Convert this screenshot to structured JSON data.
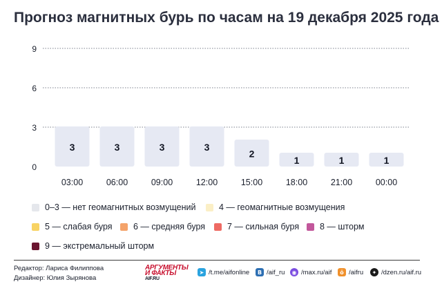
{
  "title": "Прогноз магнитных бурь по часам на 19 декабря 2025 года",
  "chart_data": {
    "type": "bar",
    "categories": [
      "03:00",
      "06:00",
      "09:00",
      "12:00",
      "15:00",
      "18:00",
      "21:00",
      "00:00"
    ],
    "values": [
      3,
      3,
      3,
      3,
      2,
      1,
      1,
      1
    ],
    "data_labels": [
      "3",
      "3",
      "3",
      "3",
      "2",
      "1",
      "1",
      "1"
    ],
    "yticks": [
      "0",
      "3",
      "6",
      "9"
    ],
    "ylim": [
      0,
      9
    ],
    "grid": "dotted horizontal",
    "bar_color": "#e6e9f3"
  },
  "legend": [
    {
      "label": "0–3 — нет геомагнитных возмущений",
      "color": "#e5e7ec"
    },
    {
      "label": "4 — геомагнитные возмущения",
      "color": "#fbefc6"
    },
    {
      "label": "5 — слабая буря",
      "color": "#f8d363"
    },
    {
      "label": "6 — средняя буря",
      "color": "#f4a36a"
    },
    {
      "label": "7 — сильная буря",
      "color": "#ee6a63"
    },
    {
      "label": "8 — шторм",
      "color": "#c2579b"
    },
    {
      "label": "9 — экстремальный шторм",
      "color": "#6a1530"
    }
  ],
  "footer": {
    "editor": "Редактор: Лариса Филиппова",
    "designer": "Дизайнер: Юлия Зырянова",
    "logo_line1": "АРГУМЕНТЫ",
    "logo_line2": "И ФАКТЫ",
    "logo_line3": "AIF.RU",
    "social": [
      {
        "label": "/t.me/aifonline",
        "icon": "telegram-icon",
        "glyph": "➤",
        "color": "#2aa3df"
      },
      {
        "label": "/aif_ru",
        "icon": "vk-icon",
        "glyph": "В",
        "color": "#2d6fb3"
      },
      {
        "label": "/max.ru/aif",
        "icon": "max-icon",
        "glyph": "◉",
        "color": "#7b4de0"
      },
      {
        "label": "/aifru",
        "icon": "ok-icon",
        "glyph": "ӧ",
        "color": "#f0912c"
      },
      {
        "label": "/dzen.ru/aif.ru",
        "icon": "dzen-icon",
        "glyph": "✦",
        "color": "#1a1a1a"
      }
    ]
  }
}
